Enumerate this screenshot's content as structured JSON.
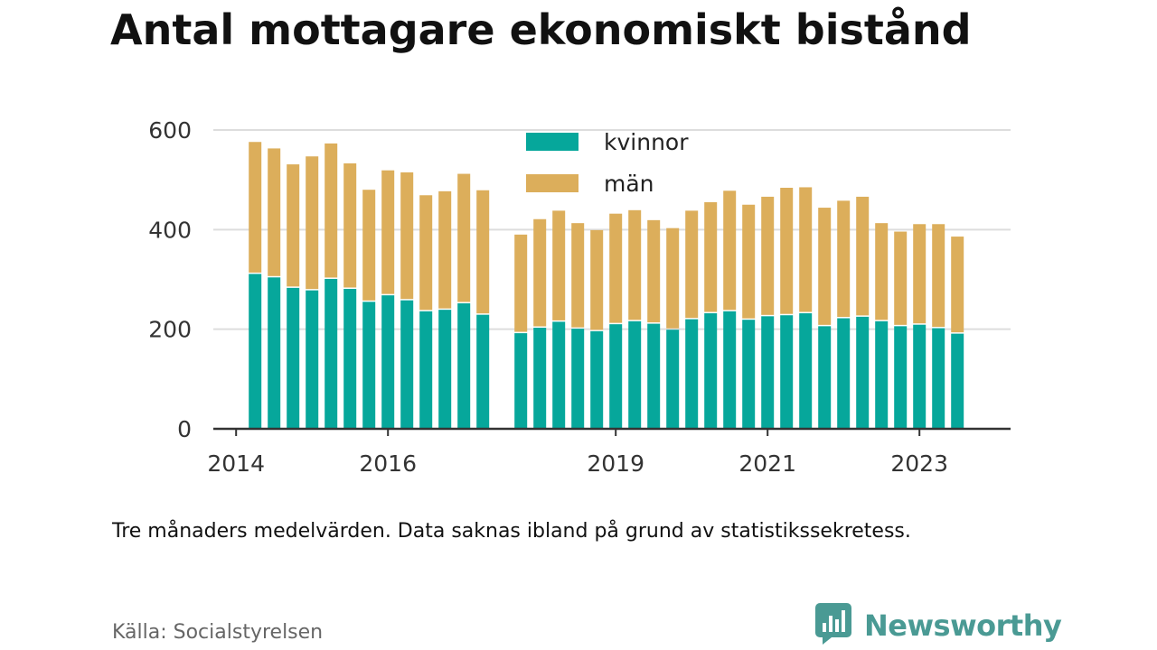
{
  "title": "Antal mottagare ekonomiskt bistånd",
  "note": "Tre månaders medelvärden. Data saknas ibland på grund av statistikssekretess.",
  "source": "Källa: Socialstyrelsen",
  "brand": {
    "name": "Newsworthy",
    "icon": "newsworthy-logo-icon",
    "color": "#4a9a94"
  },
  "colors": {
    "kvinnor": "#06a79b",
    "man": "#dcae5b",
    "grid": "#dddddd",
    "axis": "#333333"
  },
  "chart_data": {
    "type": "bar",
    "stacked": true,
    "legend_position": "top",
    "grid": true,
    "ylim": [
      0,
      600
    ],
    "yticks": [
      0,
      200,
      400,
      600
    ],
    "xticks": [
      {
        "label": "2014",
        "x": 2014.0
      },
      {
        "label": "2016",
        "x": 2016.0
      },
      {
        "label": "2019",
        "x": 2019.0
      },
      {
        "label": "2021",
        "x": 2021.0
      },
      {
        "label": "2023",
        "x": 2023.0
      }
    ],
    "xlim": [
      2013.7,
      2024.2
    ],
    "x": [
      2014.25,
      2014.5,
      2014.75,
      2015.0,
      2015.25,
      2015.5,
      2015.75,
      2016.0,
      2016.25,
      2016.5,
      2016.75,
      2017.0,
      2017.25,
      2017.5,
      2017.75,
      2018.0,
      2018.25,
      2018.5,
      2018.75,
      2019.0,
      2019.25,
      2019.5,
      2019.75,
      2020.0,
      2020.25,
      2020.5,
      2020.75,
      2021.0,
      2021.25,
      2021.5,
      2021.75,
      2022.0,
      2022.25,
      2022.5,
      2022.75,
      2023.0,
      2023.25,
      2023.5,
      2023.75
    ],
    "series": [
      {
        "name": "kvinnor",
        "color": "#06a79b",
        "values": [
          311,
          304,
          283,
          278,
          301,
          281,
          255,
          268,
          258,
          236,
          239,
          252,
          229,
          null,
          192,
          203,
          215,
          201,
          196,
          210,
          216,
          211,
          199,
          220,
          232,
          236,
          219,
          226,
          228,
          232,
          206,
          222,
          225,
          216,
          206,
          209,
          202,
          191,
          null
        ]
      },
      {
        "name": "män",
        "color": "#dcae5b",
        "values": [
          265,
          259,
          248,
          269,
          272,
          252,
          225,
          251,
          257,
          233,
          238,
          260,
          250,
          null,
          198,
          218,
          223,
          212,
          203,
          222,
          223,
          208,
          204,
          218,
          223,
          242,
          231,
          240,
          256,
          253,
          238,
          236,
          241,
          197,
          190,
          202,
          209,
          195,
          null
        ]
      }
    ]
  }
}
